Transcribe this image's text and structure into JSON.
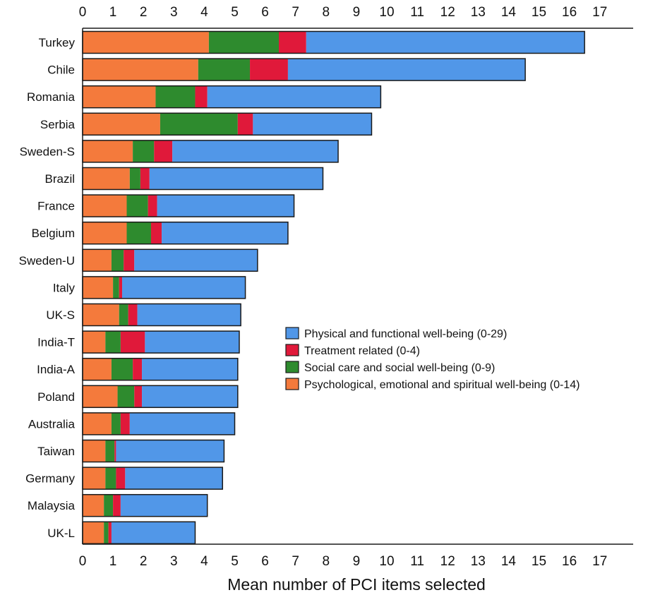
{
  "chart_data": {
    "type": "bar",
    "orientation": "horizontal",
    "stacked": true,
    "title": "",
    "xlabel": "Mean number of PCI items selected",
    "ylabel": "",
    "xlim": [
      0,
      17
    ],
    "x_ticks": [
      0,
      1,
      2,
      3,
      4,
      5,
      6,
      7,
      8,
      9,
      10,
      11,
      12,
      13,
      14,
      15,
      16,
      17
    ],
    "tick_labels_top_and_bottom": true,
    "grid": false,
    "legend_position": "right-center",
    "categories": [
      "Turkey",
      "Chile",
      "Romania",
      "Serbia",
      "Sweden-S",
      "Brazil",
      "France",
      "Belgium",
      "Sweden-U",
      "Italy",
      "UK-S",
      "India-T",
      "India-A",
      "Poland",
      "Australia",
      "Taiwan",
      "Germany",
      "Malaysia",
      "UK-L"
    ],
    "series": [
      {
        "name": "Psychological, emotional and spiritual well-being (0-14)",
        "color": "#f47a3c",
        "values": [
          4.15,
          3.8,
          2.4,
          2.55,
          1.65,
          1.55,
          1.45,
          1.45,
          0.95,
          1.0,
          1.2,
          0.75,
          0.95,
          1.15,
          0.95,
          0.75,
          0.75,
          0.7,
          0.7
        ]
      },
      {
        "name": "Social care and social well-being (0-9)",
        "color": "#2e8b2e",
        "values": [
          2.3,
          1.7,
          1.3,
          2.55,
          0.7,
          0.35,
          0.7,
          0.8,
          0.4,
          0.2,
          0.3,
          0.5,
          0.7,
          0.55,
          0.3,
          0.3,
          0.35,
          0.3,
          0.15
        ]
      },
      {
        "name": "Treatment related (0-4)",
        "color": "#e0193a",
        "values": [
          0.9,
          1.25,
          0.4,
          0.5,
          0.6,
          0.3,
          0.3,
          0.35,
          0.35,
          0.1,
          0.3,
          0.8,
          0.3,
          0.25,
          0.3,
          0.05,
          0.3,
          0.25,
          0.1
        ]
      },
      {
        "name": "Physical and functional well-being (0-29)",
        "color": "#5197e8",
        "values": [
          9.15,
          7.8,
          5.7,
          3.9,
          5.45,
          5.7,
          4.5,
          4.15,
          4.05,
          4.05,
          3.4,
          3.1,
          3.15,
          3.15,
          3.45,
          3.55,
          3.2,
          2.85,
          2.75
        ]
      }
    ],
    "legend_order": [
      "Physical and functional well-being (0-29)",
      "Treatment related (0-4)",
      "Social care and social well-being (0-9)",
      "Psychological, emotional and spiritual well-being (0-14)"
    ]
  }
}
